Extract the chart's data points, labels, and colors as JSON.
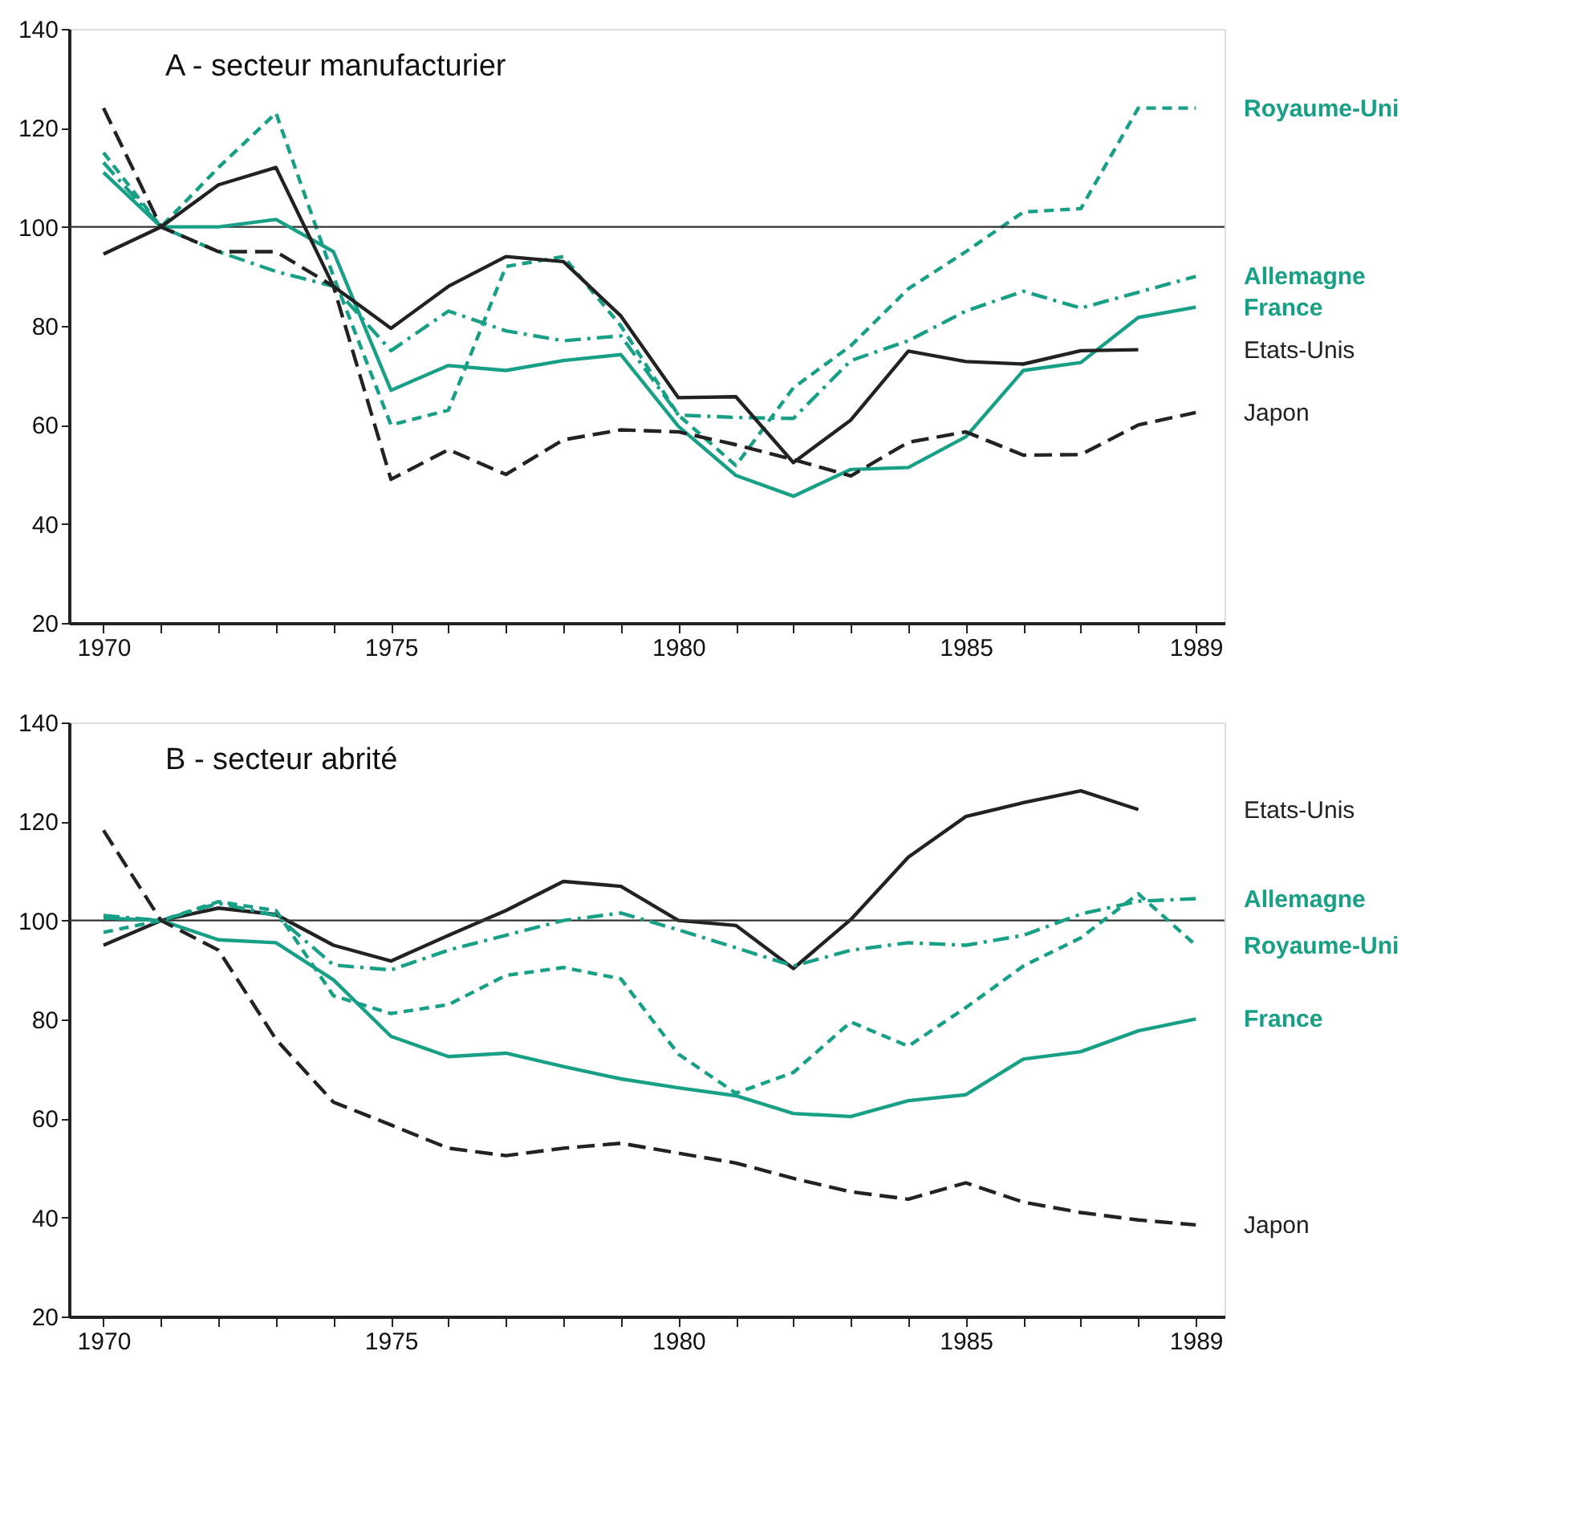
{
  "chart_data": [
    {
      "type": "line",
      "title": "A - secteur manufacturier",
      "x": [
        1970,
        1971,
        1972,
        1973,
        1974,
        1975,
        1976,
        1977,
        1978,
        1979,
        1980,
        1981,
        1982,
        1983,
        1984,
        1985,
        1986,
        1987,
        1988,
        1989
      ],
      "xlim": [
        1969.4,
        1989.5
      ],
      "xticks": [
        1970,
        {
          "value": 1971,
          "label": null
        },
        {
          "value": 1972,
          "label": null
        },
        {
          "value": 1973,
          "label": null
        },
        {
          "value": 1974,
          "label": null
        },
        1975,
        {
          "value": 1976,
          "label": null
        },
        {
          "value": 1977,
          "label": null
        },
        {
          "value": 1978,
          "label": null
        },
        {
          "value": 1979,
          "label": null
        },
        1980,
        {
          "value": 1981,
          "label": null
        },
        {
          "value": 1982,
          "label": null
        },
        {
          "value": 1983,
          "label": null
        },
        {
          "value": 1984,
          "label": null
        },
        1985,
        {
          "value": 1986,
          "label": null
        },
        {
          "value": 1987,
          "label": null
        },
        {
          "value": 1988,
          "label": null
        },
        1989
      ],
      "ylim": [
        20,
        140
      ],
      "yticks": [
        20,
        40,
        60,
        80,
        100,
        120,
        140
      ],
      "grid": false,
      "legend": false,
      "marker": "none",
      "ref_lines": [
        {
          "axis": "y",
          "value": 100,
          "color": "#333333",
          "line_style": "solid"
        }
      ],
      "series": [
        {
          "name": "Royaume-Uni",
          "color": "#17a086",
          "line_style": "dashed",
          "values": [
            115,
            100,
            112,
            123,
            90,
            60,
            63,
            92,
            94,
            80,
            62,
            51.8,
            67.5,
            76,
            87.5,
            95,
            103,
            103.7,
            124,
            124
          ]
        },
        {
          "name": "Allemagne",
          "color": "#17a086",
          "line_style": "dashdot",
          "values": [
            113,
            100,
            95,
            91,
            88,
            75,
            83,
            79,
            77,
            78,
            62,
            61.5,
            61.3,
            73,
            77,
            83,
            87,
            83.6,
            86.8,
            90
          ]
        },
        {
          "name": "France",
          "color": "#17a086",
          "line_style": "solid",
          "values": [
            111,
            100,
            100,
            101.5,
            95,
            67,
            72,
            71,
            73,
            74.2,
            59.7,
            49.8,
            45.6,
            51,
            51.4,
            57.6,
            71,
            72.6,
            81.7,
            83.8
          ]
        },
        {
          "name": "Etats-Unis",
          "color": "#222222",
          "line_style": "solid",
          "values": [
            94.5,
            100,
            108.5,
            112,
            88,
            79.5,
            88,
            94,
            93,
            82,
            65.5,
            65.7,
            52.4,
            61,
            74.9,
            72.8,
            72.3,
            75,
            75.2,
            null
          ]
        },
        {
          "name": "Japon",
          "color": "#222222",
          "line_style": "longdash",
          "values": [
            124,
            100,
            95,
            95,
            88,
            49,
            55,
            50,
            57,
            59,
            58.6,
            56,
            53,
            49.7,
            56.5,
            58.6,
            53.9,
            54,
            60,
            62.5
          ]
        }
      ]
    },
    {
      "type": "line",
      "title": "B - secteur abrité",
      "x": [
        1970,
        1971,
        1972,
        1973,
        1974,
        1975,
        1976,
        1977,
        1978,
        1979,
        1980,
        1981,
        1982,
        1983,
        1984,
        1985,
        1986,
        1987,
        1988,
        1989
      ],
      "xlim": [
        1969.4,
        1989.5
      ],
      "xticks": [
        1970,
        {
          "value": 1971,
          "label": null
        },
        {
          "value": 1972,
          "label": null
        },
        {
          "value": 1973,
          "label": null
        },
        {
          "value": 1974,
          "label": null
        },
        1975,
        {
          "value": 1976,
          "label": null
        },
        {
          "value": 1977,
          "label": null
        },
        {
          "value": 1978,
          "label": null
        },
        {
          "value": 1979,
          "label": null
        },
        1980,
        {
          "value": 1981,
          "label": null
        },
        {
          "value": 1982,
          "label": null
        },
        {
          "value": 1983,
          "label": null
        },
        {
          "value": 1984,
          "label": null
        },
        1985,
        {
          "value": 1986,
          "label": null
        },
        {
          "value": 1987,
          "label": null
        },
        {
          "value": 1988,
          "label": null
        },
        1989
      ],
      "ylim": [
        20,
        140
      ],
      "yticks": [
        20,
        40,
        60,
        80,
        100,
        120,
        140
      ],
      "grid": false,
      "legend": false,
      "marker": "none",
      "ref_lines": [
        {
          "axis": "y",
          "value": 100,
          "color": "#333333",
          "line_style": "solid"
        }
      ],
      "series": [
        {
          "name": "Etats-Unis",
          "color": "#222222",
          "line_style": "solid",
          "values": [
            95,
            100,
            102.5,
            101.2,
            95,
            91.8,
            97,
            102,
            107.9,
            106.9,
            100,
            99,
            90.3,
            100.2,
            112.8,
            121,
            123.8,
            126.2,
            122.4,
            null
          ]
        },
        {
          "name": "Allemagne",
          "color": "#17a086",
          "line_style": "dashdot",
          "values": [
            101,
            100,
            103.5,
            101,
            91,
            90,
            94,
            97,
            100,
            101.5,
            98.1,
            94.5,
            90.8,
            94,
            95.5,
            95,
            97,
            101.3,
            103.9,
            104.4
          ]
        },
        {
          "name": "Royaume-Uni",
          "color": "#17a086",
          "line_style": "dashed",
          "values": [
            97.6,
            100,
            103.8,
            102,
            84.8,
            81.2,
            83,
            88.9,
            90.5,
            88.2,
            73,
            65.1,
            69.3,
            79.5,
            74.6,
            82.4,
            90.8,
            96.5,
            105.4,
            95
          ]
        },
        {
          "name": "France",
          "color": "#17a086",
          "line_style": "solid",
          "values": [
            100.5,
            100,
            96.1,
            95.5,
            88,
            76.6,
            72.5,
            73.2,
            70.5,
            68,
            66.2,
            64.6,
            61,
            60.4,
            63.6,
            64.8,
            72,
            73.5,
            77.7,
            80.1
          ]
        },
        {
          "name": "Japon",
          "color": "#222222",
          "line_style": "longdash",
          "values": [
            118.2,
            100,
            94,
            76,
            63.3,
            58.7,
            54,
            52.5,
            54,
            55,
            53,
            51,
            47.9,
            45.2,
            43.7,
            47,
            43.1,
            41,
            39.5,
            38.5
          ]
        }
      ]
    }
  ]
}
